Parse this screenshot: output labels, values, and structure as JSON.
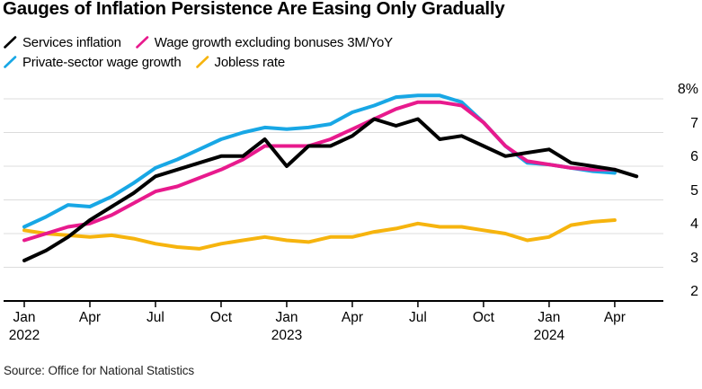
{
  "title": "Gauges of Inflation Persistence Are Easing Only Gradually",
  "source": "Source: Office for National Statistics",
  "chart_data": {
    "type": "line",
    "title": "Gauges of Inflation Persistence Are Easing Only Gradually",
    "x_unit": "month",
    "x_start": "2022-01",
    "x_end_longest_series": "2024-05",
    "grid": "horizontal",
    "legend_position": "top-left",
    "y_axis": {
      "side": "right",
      "range": [
        2,
        8
      ],
      "ticks": [
        {
          "value": 8,
          "label": "8%"
        },
        {
          "value": 7,
          "label": "7"
        },
        {
          "value": 6,
          "label": "6"
        },
        {
          "value": 5,
          "label": "5"
        },
        {
          "value": 4,
          "label": "4"
        },
        {
          "value": 3,
          "label": "3"
        },
        {
          "value": 2,
          "label": "2"
        }
      ]
    },
    "x_ticks": [
      {
        "month_index": 0,
        "label": "Jan",
        "year": "2022"
      },
      {
        "month_index": 3,
        "label": "Apr"
      },
      {
        "month_index": 6,
        "label": "Jul"
      },
      {
        "month_index": 9,
        "label": "Oct"
      },
      {
        "month_index": 12,
        "label": "Jan",
        "year": "2023"
      },
      {
        "month_index": 15,
        "label": "Apr"
      },
      {
        "month_index": 18,
        "label": "Jul"
      },
      {
        "month_index": 21,
        "label": "Oct"
      },
      {
        "month_index": 24,
        "label": "Jan",
        "year": "2024"
      },
      {
        "month_index": 27,
        "label": "Apr"
      }
    ],
    "series": [
      {
        "name": "Services inflation",
        "color": "#000000",
        "values": [
          3.2,
          3.5,
          3.9,
          4.4,
          4.8,
          5.2,
          5.7,
          5.9,
          6.1,
          6.3,
          6.3,
          6.8,
          6.0,
          6.6,
          6.6,
          6.9,
          7.4,
          7.2,
          7.4,
          6.8,
          6.9,
          6.6,
          6.3,
          6.4,
          6.5,
          6.1,
          6.0,
          5.9,
          5.7
        ]
      },
      {
        "name": "Wage growth excluding bonuses 3M/YoY",
        "color": "#e81a8d",
        "values": [
          3.8,
          4.0,
          4.2,
          4.3,
          4.55,
          4.9,
          5.25,
          5.4,
          5.65,
          5.9,
          6.2,
          6.6,
          6.6,
          6.6,
          6.8,
          7.1,
          7.4,
          7.7,
          7.9,
          7.9,
          7.8,
          7.3,
          6.6,
          6.15,
          6.05,
          5.95,
          5.9,
          5.9
        ]
      },
      {
        "name": "Private-sector wage growth",
        "color": "#18a7e5",
        "values": [
          4.2,
          4.5,
          4.85,
          4.8,
          5.1,
          5.5,
          5.95,
          6.2,
          6.5,
          6.8,
          7.0,
          7.15,
          7.1,
          7.15,
          7.25,
          7.6,
          7.8,
          8.05,
          8.1,
          8.1,
          7.9,
          7.3,
          6.6,
          6.1,
          6.05,
          5.95,
          5.85,
          5.8
        ]
      },
      {
        "name": "Jobless rate",
        "color": "#f6b40e",
        "values": [
          4.1,
          4.0,
          3.95,
          3.9,
          3.95,
          3.85,
          3.7,
          3.6,
          3.55,
          3.7,
          3.8,
          3.9,
          3.8,
          3.75,
          3.9,
          3.9,
          4.05,
          4.15,
          4.3,
          4.2,
          4.2,
          4.1,
          4.0,
          3.8,
          3.9,
          4.25,
          4.35,
          4.4
        ]
      }
    ]
  }
}
